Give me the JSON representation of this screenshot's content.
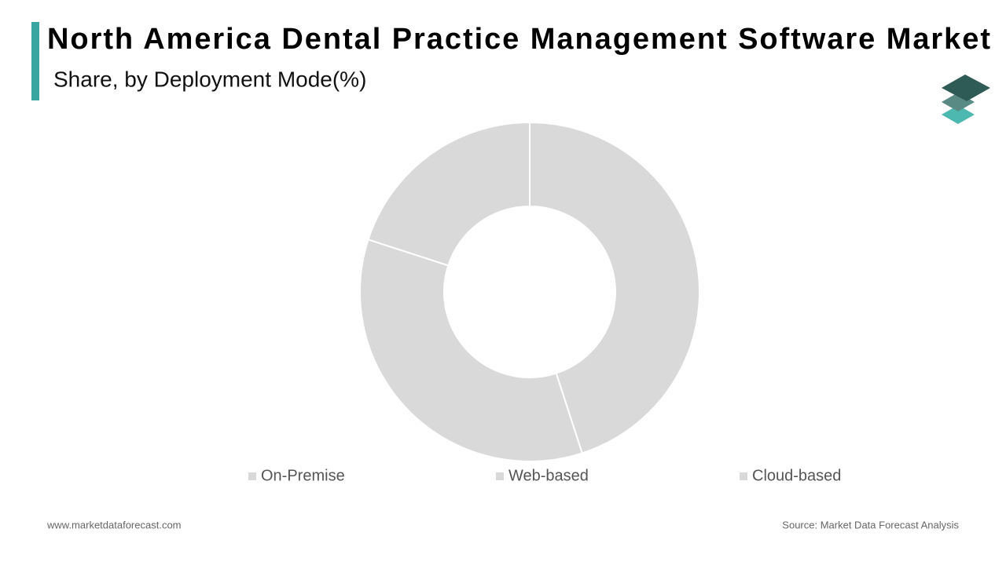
{
  "chart_data": {
    "type": "donut",
    "title": "North America Dental Practice Management Software Market",
    "subtitle": "Share, by Deployment Mode(%)",
    "categories": [
      "On-Premise",
      "Web-based",
      "Cloud-based"
    ],
    "values": [
      45,
      35,
      20
    ],
    "colors": [
      "#d9d9d9",
      "#d9d9d9",
      "#d9d9d9"
    ],
    "legend": "bottom"
  },
  "footer": {
    "website": "www.marketdataforecast.com",
    "source": "Source: Market Data Forecast Analysis"
  }
}
